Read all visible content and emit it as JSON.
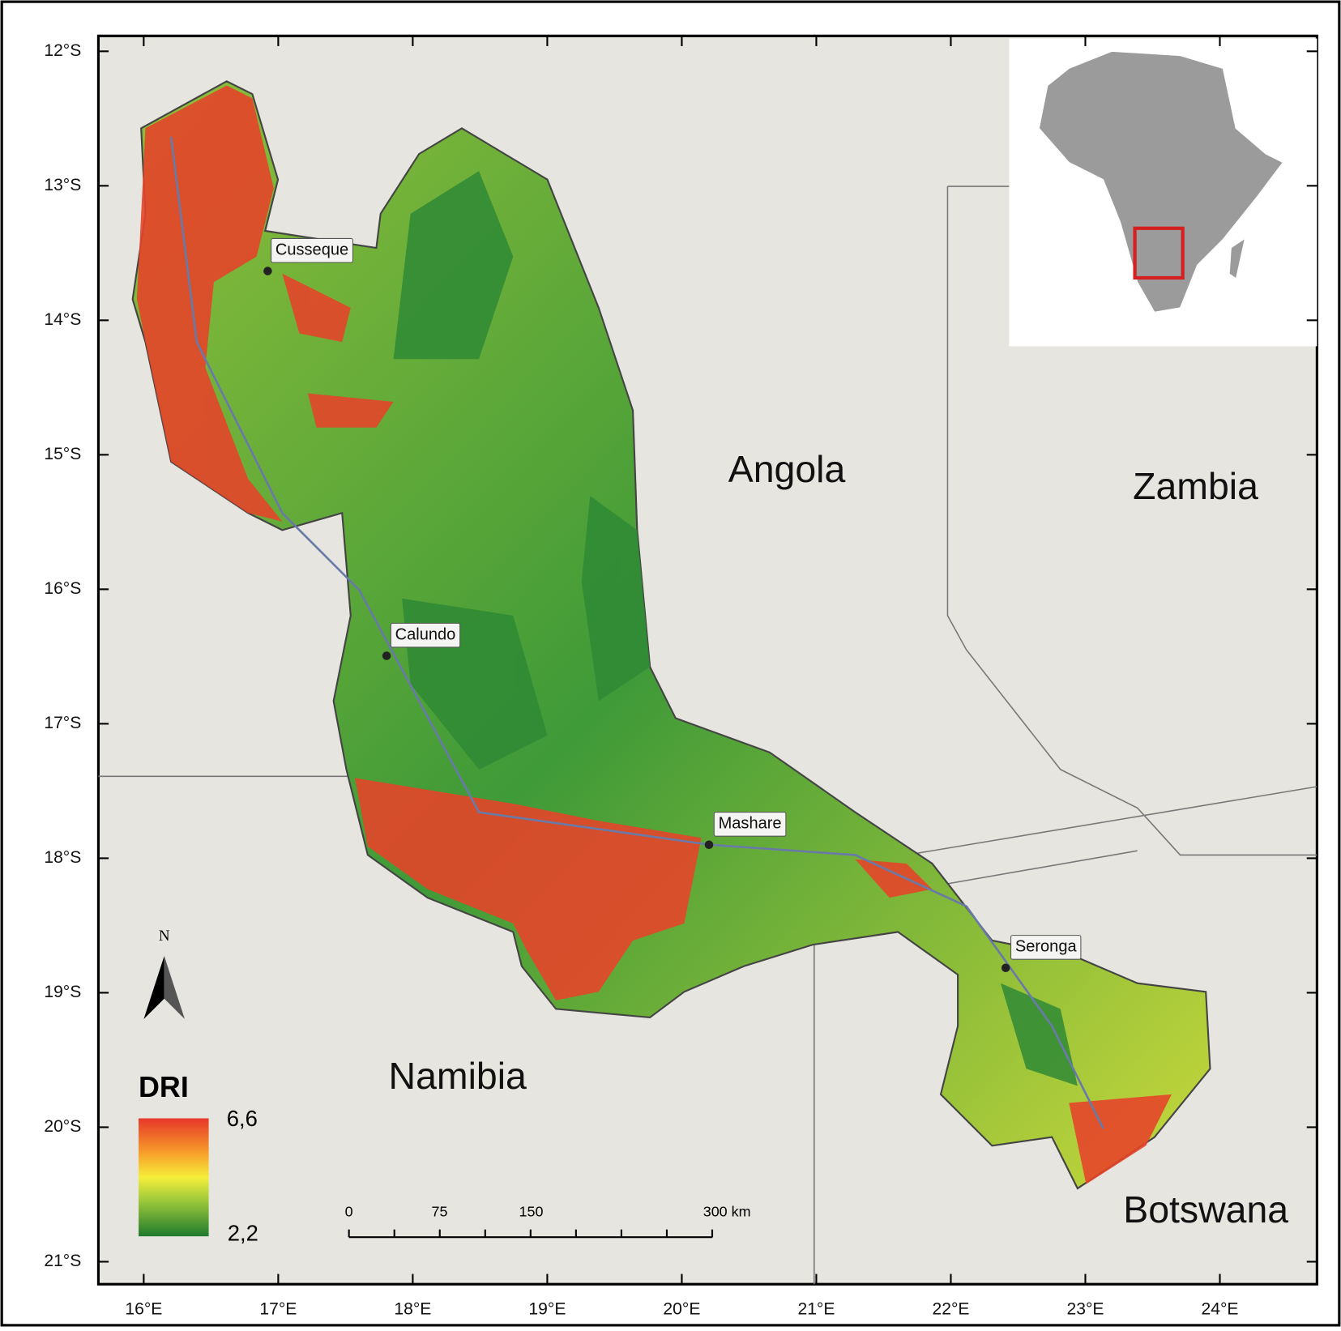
{
  "map": {
    "latitude_labels": [
      "12°S",
      "13°S",
      "14°S",
      "15°S",
      "16°S",
      "17°S",
      "18°S",
      "19°S",
      "20°S",
      "21°S"
    ],
    "longitude_labels": [
      "16°E",
      "17°E",
      "18°E",
      "19°E",
      "20°E",
      "21°E",
      "22°E",
      "23°E",
      "24°E"
    ],
    "countries": [
      "Angola",
      "Zambia",
      "Namibia",
      "Botswana"
    ],
    "places": [
      "Cusseque",
      "Calundo",
      "Mashare",
      "Seronga"
    ],
    "legend": {
      "title": "DRI",
      "max": "6,6",
      "min": "2,2"
    },
    "scale_bar": [
      "0",
      "75",
      "150",
      "300 km"
    ],
    "north_arrow": "N"
  }
}
